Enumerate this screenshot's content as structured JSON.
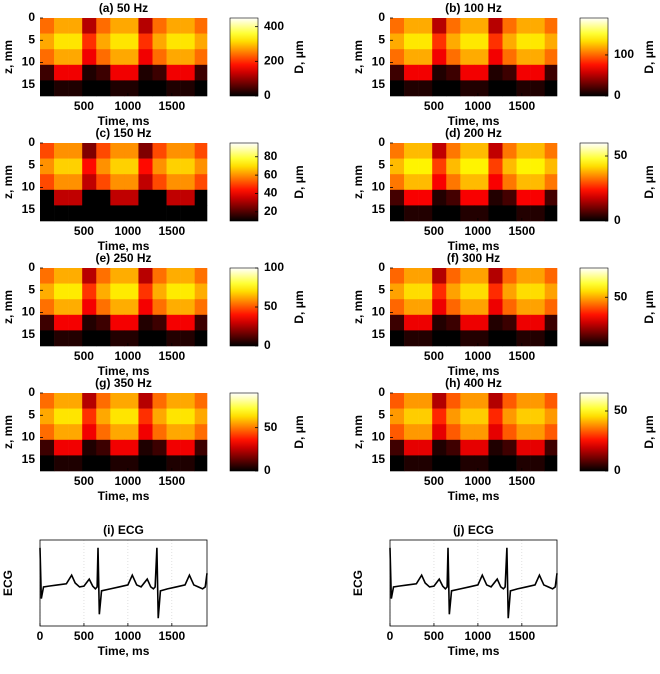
{
  "chart_data": [
    {
      "type": "heatmap",
      "title": "(a) 50 Hz",
      "xlabel": "Time, ms",
      "ylabel": "z, mm",
      "colorbar_label": "D, μm",
      "colormap": "hot",
      "y_reversed": true,
      "x_edges": [
        0,
        160,
        320,
        480,
        640,
        800,
        960,
        1120,
        1280,
        1440,
        1600,
        1760,
        1900
      ],
      "y_edges": [
        0,
        3.5,
        7,
        10.5,
        14,
        17.5
      ],
      "values": [
        [
          240,
          280,
          280,
          120,
          240,
          280,
          280,
          120,
          240,
          280,
          280,
          240
        ],
        [
          280,
          320,
          320,
          200,
          280,
          320,
          320,
          200,
          280,
          320,
          320,
          280
        ],
        [
          240,
          280,
          280,
          160,
          240,
          280,
          280,
          160,
          240,
          280,
          280,
          240
        ],
        [
          40,
          160,
          160,
          20,
          40,
          160,
          160,
          20,
          40,
          160,
          160,
          40
        ],
        [
          0,
          20,
          20,
          0,
          0,
          20,
          20,
          0,
          0,
          20,
          20,
          0
        ]
      ],
      "xlim": [
        0,
        1900
      ],
      "ylim": [
        0,
        17.5
      ],
      "xticks": [
        500,
        1000,
        1500
      ],
      "yticks": [
        0,
        5,
        10,
        15
      ],
      "clim": [
        0,
        450
      ],
      "cticks": [
        0,
        200,
        400
      ]
    },
    {
      "type": "heatmap",
      "title": "(b) 100 Hz",
      "xlabel": "Time, ms",
      "ylabel": "z, mm",
      "colorbar_label": "D, μm",
      "colormap": "hot",
      "y_reversed": true,
      "x_edges": [
        0,
        160,
        320,
        480,
        640,
        800,
        960,
        1120,
        1280,
        1440,
        1600,
        1760,
        1900
      ],
      "y_edges": [
        0,
        3.5,
        7,
        10.5,
        14,
        17.5
      ],
      "values": [
        [
          102,
          119,
          119,
          51,
          102,
          119,
          119,
          51,
          102,
          119,
          119,
          102
        ],
        [
          119,
          136,
          136,
          85,
          119,
          136,
          136,
          85,
          119,
          136,
          136,
          119
        ],
        [
          102,
          119,
          119,
          68,
          102,
          119,
          119,
          68,
          102,
          119,
          119,
          102
        ],
        [
          17,
          68,
          68,
          9,
          17,
          68,
          68,
          9,
          17,
          68,
          68,
          17
        ],
        [
          0,
          9,
          9,
          0,
          0,
          9,
          9,
          0,
          0,
          9,
          9,
          0
        ]
      ],
      "xlim": [
        0,
        1900
      ],
      "ylim": [
        0,
        17.5
      ],
      "xticks": [
        500,
        1000,
        1500
      ],
      "yticks": [
        0,
        5,
        10,
        15
      ],
      "clim": [
        0,
        190
      ],
      "cticks": [
        0,
        100
      ]
    },
    {
      "type": "heatmap",
      "title": "(c) 150 Hz",
      "xlabel": "Time, ms",
      "ylabel": "z, mm",
      "colorbar_label": "D, μm",
      "colormap": "hot",
      "y_reversed": true,
      "x_edges": [
        0,
        160,
        320,
        480,
        640,
        800,
        960,
        1120,
        1280,
        1440,
        1600,
        1760,
        1900
      ],
      "y_edges": [
        0,
        3.5,
        7,
        10.5,
        14,
        17.5
      ],
      "values": [
        [
          51,
          60,
          60,
          26,
          51,
          60,
          60,
          26,
          51,
          60,
          60,
          51
        ],
        [
          60,
          68,
          68,
          43,
          60,
          68,
          68,
          43,
          60,
          68,
          68,
          60
        ],
        [
          51,
          60,
          60,
          34,
          51,
          60,
          60,
          34,
          51,
          60,
          60,
          51
        ],
        [
          10,
          34,
          34,
          10,
          10,
          34,
          34,
          10,
          10,
          34,
          34,
          10
        ],
        [
          10,
          10,
          10,
          10,
          10,
          10,
          10,
          10,
          10,
          10,
          10,
          10
        ]
      ],
      "xlim": [
        0,
        1900
      ],
      "ylim": [
        0,
        17.5
      ],
      "xticks": [
        500,
        1000,
        1500
      ],
      "yticks": [
        0,
        5,
        10,
        15
      ],
      "clim": [
        10,
        95
      ],
      "cticks": [
        20,
        40,
        60,
        80
      ]
    },
    {
      "type": "heatmap",
      "title": "(d) 200 Hz",
      "xlabel": "Time, ms",
      "ylabel": "z, mm",
      "colorbar_label": "D, μm",
      "colormap": "hot",
      "y_reversed": true,
      "x_edges": [
        0,
        160,
        320,
        480,
        640,
        800,
        960,
        1120,
        1280,
        1440,
        1600,
        1760,
        1900
      ],
      "y_edges": [
        0,
        3.5,
        7,
        10.5,
        14,
        17.5
      ],
      "values": [
        [
          33,
          39,
          39,
          17,
          33,
          39,
          39,
          17,
          33,
          39,
          39,
          33
        ],
        [
          39,
          44,
          44,
          28,
          39,
          44,
          44,
          28,
          39,
          44,
          44,
          39
        ],
        [
          33,
          39,
          39,
          22,
          33,
          39,
          39,
          22,
          33,
          39,
          39,
          33
        ],
        [
          6,
          22,
          22,
          3,
          6,
          22,
          22,
          3,
          6,
          22,
          22,
          6
        ],
        [
          0,
          3,
          3,
          0,
          0,
          3,
          3,
          0,
          0,
          3,
          3,
          0
        ]
      ],
      "xlim": [
        0,
        1900
      ],
      "ylim": [
        0,
        17.5
      ],
      "xticks": [
        500,
        1000,
        1500
      ],
      "yticks": [
        0,
        5,
        10,
        15
      ],
      "clim": [
        0,
        60
      ],
      "cticks": [
        0,
        50
      ]
    },
    {
      "type": "heatmap",
      "title": "(e) 250 Hz",
      "xlabel": "Time, ms",
      "ylabel": "z, mm",
      "colorbar_label": "D, μm",
      "colormap": "hot",
      "y_reversed": true,
      "x_edges": [
        0,
        160,
        320,
        480,
        640,
        800,
        960,
        1120,
        1280,
        1440,
        1600,
        1760,
        1900
      ],
      "y_edges": [
        0,
        3.5,
        7,
        10.5,
        14,
        17.5
      ],
      "values": [
        [
          54,
          63,
          63,
          27,
          54,
          63,
          63,
          27,
          54,
          63,
          63,
          54
        ],
        [
          63,
          72,
          72,
          45,
          63,
          72,
          72,
          45,
          63,
          72,
          72,
          63
        ],
        [
          54,
          63,
          63,
          36,
          54,
          63,
          63,
          36,
          54,
          63,
          63,
          54
        ],
        [
          9,
          36,
          36,
          5,
          9,
          36,
          36,
          5,
          9,
          36,
          36,
          9
        ],
        [
          0,
          5,
          5,
          0,
          0,
          5,
          5,
          0,
          0,
          5,
          5,
          0
        ]
      ],
      "xlim": [
        0,
        1900
      ],
      "ylim": [
        0,
        17.5
      ],
      "xticks": [
        500,
        1000,
        1500
      ],
      "yticks": [
        0,
        5,
        10,
        15
      ],
      "clim": [
        0,
        100
      ],
      "cticks": [
        0,
        50,
        100
      ]
    },
    {
      "type": "heatmap",
      "title": "(f) 300 Hz",
      "xlabel": "Time, ms",
      "ylabel": "z, mm",
      "colorbar_label": "D, μm",
      "colormap": "hot",
      "y_reversed": true,
      "x_edges": [
        0,
        160,
        320,
        480,
        640,
        800,
        960,
        1120,
        1280,
        1440,
        1600,
        1760,
        1900
      ],
      "y_edges": [
        0,
        3.5,
        7,
        10.5,
        14,
        17.5
      ],
      "values": [
        [
          42,
          49,
          49,
          21,
          42,
          49,
          49,
          21,
          42,
          49,
          49,
          42
        ],
        [
          49,
          56,
          56,
          35,
          49,
          56,
          56,
          35,
          49,
          56,
          56,
          49
        ],
        [
          42,
          49,
          49,
          28,
          42,
          49,
          49,
          28,
          42,
          49,
          49,
          42
        ],
        [
          7,
          28,
          28,
          4,
          7,
          28,
          28,
          4,
          7,
          28,
          28,
          7
        ],
        [
          0,
          4,
          4,
          0,
          0,
          4,
          4,
          0,
          0,
          4,
          4,
          0
        ]
      ],
      "xlim": [
        0,
        1900
      ],
      "ylim": [
        0,
        17.5
      ],
      "xticks": [
        500,
        1000,
        1500
      ],
      "yticks": [
        0,
        5,
        10,
        15
      ],
      "clim": [
        0,
        80
      ],
      "cticks": [
        50
      ]
    },
    {
      "type": "heatmap",
      "title": "(g) 350 Hz",
      "xlabel": "Time, ms",
      "ylabel": "z, mm",
      "colorbar_label": "D, μm",
      "colormap": "hot",
      "y_reversed": true,
      "x_edges": [
        0,
        160,
        320,
        480,
        640,
        800,
        960,
        1120,
        1280,
        1440,
        1600,
        1760,
        1900
      ],
      "y_edges": [
        0,
        3.5,
        7,
        10.5,
        14,
        17.5
      ],
      "values": [
        [
          48,
          56,
          56,
          24,
          48,
          56,
          56,
          24,
          48,
          56,
          56,
          48
        ],
        [
          56,
          64,
          64,
          40,
          56,
          64,
          64,
          40,
          56,
          64,
          64,
          56
        ],
        [
          48,
          56,
          56,
          32,
          48,
          56,
          56,
          32,
          48,
          56,
          56,
          48
        ],
        [
          8,
          32,
          32,
          4,
          8,
          32,
          32,
          4,
          8,
          32,
          32,
          8
        ],
        [
          0,
          4,
          4,
          0,
          0,
          4,
          4,
          0,
          0,
          4,
          4,
          0
        ]
      ],
      "xlim": [
        0,
        1900
      ],
      "ylim": [
        0,
        17.5
      ],
      "xticks": [
        500,
        1000,
        1500
      ],
      "yticks": [
        0,
        5,
        10,
        15
      ],
      "clim": [
        0,
        90
      ],
      "cticks": [
        0,
        50
      ]
    },
    {
      "type": "heatmap",
      "title": "(h) 400 Hz",
      "xlabel": "Time, ms",
      "ylabel": "z, mm",
      "colorbar_label": "D, μm",
      "colormap": "hot",
      "y_reversed": true,
      "x_edges": [
        0,
        160,
        320,
        480,
        640,
        800,
        960,
        1120,
        1280,
        1440,
        1600,
        1760,
        1900
      ],
      "y_edges": [
        0,
        3.5,
        7,
        10.5,
        14,
        17.5
      ],
      "values": [
        [
          33,
          39,
          39,
          17,
          33,
          39,
          39,
          17,
          33,
          39,
          39,
          33
        ],
        [
          39,
          44,
          44,
          28,
          39,
          44,
          44,
          28,
          39,
          44,
          44,
          39
        ],
        [
          33,
          39,
          39,
          22,
          33,
          39,
          39,
          22,
          33,
          39,
          39,
          33
        ],
        [
          6,
          22,
          22,
          3,
          6,
          22,
          22,
          3,
          6,
          22,
          22,
          6
        ],
        [
          0,
          3,
          3,
          0,
          0,
          3,
          3,
          0,
          0,
          3,
          3,
          0
        ]
      ],
      "xlim": [
        0,
        1900
      ],
      "ylim": [
        0,
        17.5
      ],
      "xticks": [
        500,
        1000,
        1500
      ],
      "yticks": [
        0,
        5,
        10,
        15
      ],
      "clim": [
        0,
        65
      ],
      "cticks": [
        0,
        50
      ]
    },
    {
      "type": "line",
      "title": "(i) ECG",
      "xlabel": "Time, ms",
      "ylabel": "ECG",
      "color": "#000000",
      "grid": true,
      "x": [
        0,
        15,
        40,
        100,
        200,
        300,
        360,
        400,
        450,
        500,
        560,
        600,
        630,
        650,
        660,
        675,
        700,
        800,
        900,
        1000,
        1050,
        1100,
        1150,
        1220,
        1260,
        1290,
        1310,
        1330,
        1345,
        1370,
        1450,
        1550,
        1650,
        1700,
        1750,
        1800,
        1850,
        1880,
        1900
      ],
      "values": [
        1.0,
        -0.3,
        0.0,
        0.02,
        0.05,
        0.08,
        0.3,
        0.1,
        0.0,
        0.02,
        0.2,
        0.02,
        -0.05,
        0.0,
        1.0,
        -0.7,
        -0.1,
        -0.05,
        0.0,
        0.05,
        0.3,
        0.05,
        0.0,
        0.2,
        0.0,
        -0.05,
        0.0,
        1.0,
        -0.8,
        -0.1,
        -0.05,
        0.0,
        0.05,
        0.3,
        0.05,
        0.0,
        -0.05,
        0.0,
        0.35
      ],
      "xlim": [
        0,
        1900
      ],
      "ylim": [
        -1,
        1.2
      ],
      "xticks": [
        0,
        500,
        1000,
        1500
      ]
    },
    {
      "type": "line",
      "title": "(j) ECG",
      "xlabel": "Time, ms",
      "ylabel": "ECG",
      "color": "#000000",
      "grid": true,
      "x": [
        0,
        15,
        40,
        100,
        200,
        300,
        360,
        400,
        450,
        500,
        560,
        600,
        630,
        650,
        660,
        675,
        700,
        800,
        900,
        1000,
        1050,
        1100,
        1150,
        1220,
        1260,
        1290,
        1310,
        1330,
        1345,
        1370,
        1450,
        1550,
        1650,
        1700,
        1750,
        1800,
        1850,
        1880,
        1900
      ],
      "values": [
        1.0,
        -0.3,
        0.0,
        0.02,
        0.05,
        0.08,
        0.3,
        0.1,
        0.0,
        0.02,
        0.2,
        0.02,
        -0.05,
        0.0,
        1.0,
        -0.7,
        -0.1,
        -0.05,
        0.0,
        0.05,
        0.3,
        0.05,
        0.0,
        0.2,
        0.0,
        -0.05,
        0.0,
        1.0,
        -0.8,
        -0.1,
        -0.05,
        0.0,
        0.05,
        0.3,
        0.05,
        0.0,
        -0.05,
        0.0,
        0.35
      ],
      "xlim": [
        0,
        1900
      ],
      "ylim": [
        -1,
        1.2
      ],
      "xticks": [
        0,
        500,
        1000,
        1500
      ]
    }
  ]
}
